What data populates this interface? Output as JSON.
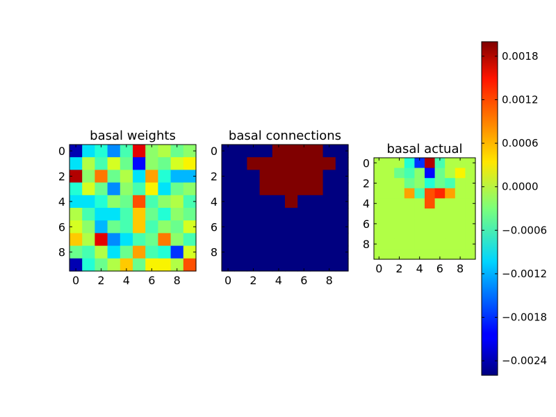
{
  "chart_data": [
    {
      "type": "heatmap",
      "title": "basal weights",
      "x_ticks": [
        "0",
        "2",
        "4",
        "6",
        "8"
      ],
      "y_ticks": [
        "0",
        "2",
        "4",
        "6",
        "8"
      ],
      "grid_size": [
        10,
        10
      ],
      "values": [
        [
          -0.0024,
          -0.001,
          -0.0008,
          -0.0014,
          -0.0006,
          0.0016,
          -0.0002,
          0.0,
          -0.0004,
          -0.0002
        ],
        [
          -0.001,
          0.0,
          -0.0006,
          0.0002,
          -0.0004,
          -0.002,
          -0.0002,
          -0.0004,
          0.0002,
          0.0004
        ],
        [
          0.0018,
          -0.0002,
          0.001,
          -0.0004,
          0.0,
          -0.001,
          0.0008,
          -0.0008,
          -0.0012,
          -0.0012
        ],
        [
          -0.0008,
          0.0002,
          -0.0004,
          -0.0014,
          -0.0002,
          -0.0006,
          0.0004,
          -0.001,
          -0.0004,
          -0.0002
        ],
        [
          -0.001,
          -0.001,
          -0.0008,
          -0.0002,
          -0.0004,
          0.0012,
          -0.0006,
          -0.0002,
          0.0,
          -0.0006
        ],
        [
          0.0,
          -0.0006,
          -0.001,
          -0.001,
          -0.0006,
          0.0006,
          -0.0004,
          -0.0008,
          -0.0002,
          -0.0004
        ],
        [
          0.0002,
          -0.0002,
          -0.0012,
          -0.0004,
          -0.0006,
          0.0006,
          -0.0006,
          -0.0002,
          -0.0004,
          0.0002
        ],
        [
          0.0006,
          0.0,
          0.0016,
          -0.0014,
          -0.001,
          -0.0006,
          -0.0004,
          0.001,
          -0.0002,
          -0.0006
        ],
        [
          -0.0004,
          -0.0006,
          0.0,
          -0.001,
          -0.0004,
          0.0008,
          -0.0006,
          -0.0008,
          -0.0018,
          0.0002
        ],
        [
          -0.0024,
          -0.0008,
          -0.0004,
          0.0,
          0.0006,
          -0.0004,
          0.0004,
          0.0004,
          0.0,
          0.0012
        ]
      ]
    },
    {
      "type": "heatmap",
      "title": "basal connections",
      "x_ticks": [
        "0",
        "2",
        "4",
        "6",
        "8"
      ],
      "y_ticks": [
        "0",
        "2",
        "4",
        "6",
        "8"
      ],
      "grid_size": [
        10,
        10
      ],
      "values": [
        [
          0,
          0,
          0,
          0,
          1,
          1,
          1,
          1,
          0,
          0
        ],
        [
          0,
          0,
          1,
          1,
          1,
          1,
          1,
          1,
          1,
          0
        ],
        [
          0,
          0,
          0,
          1,
          1,
          1,
          1,
          1,
          0,
          0
        ],
        [
          0,
          0,
          0,
          1,
          1,
          1,
          1,
          1,
          0,
          0
        ],
        [
          0,
          0,
          0,
          0,
          0,
          1,
          0,
          0,
          0,
          0
        ],
        [
          0,
          0,
          0,
          0,
          0,
          0,
          0,
          0,
          0,
          0
        ],
        [
          0,
          0,
          0,
          0,
          0,
          0,
          0,
          0,
          0,
          0
        ],
        [
          0,
          0,
          0,
          0,
          0,
          0,
          0,
          0,
          0,
          0
        ],
        [
          0,
          0,
          0,
          0,
          0,
          0,
          0,
          0,
          0,
          0
        ],
        [
          0,
          0,
          0,
          0,
          0,
          0,
          0,
          0,
          0,
          0
        ]
      ]
    },
    {
      "type": "heatmap",
      "title": "basal actual",
      "x_ticks": [
        "0",
        "2",
        "4",
        "6",
        "8"
      ],
      "y_ticks": [
        "0",
        "2",
        "4",
        "6",
        "8"
      ],
      "grid_size": [
        10,
        10
      ],
      "values": [
        [
          0,
          0,
          0,
          -0.0008,
          -0.0018,
          0.0018,
          -0.0006,
          0,
          0,
          0
        ],
        [
          0,
          0,
          -0.0004,
          -0.0006,
          -0.0002,
          -0.002,
          -0.0004,
          0,
          0.0004,
          0
        ],
        [
          0,
          0,
          0,
          -0.0004,
          -0.0002,
          -0.0008,
          -0.0004,
          -0.0006,
          0,
          0
        ],
        [
          0,
          0,
          0,
          0.0008,
          -0.0006,
          0.0012,
          0.0014,
          0.0008,
          0,
          0
        ],
        [
          0,
          0,
          0,
          0,
          0,
          0.0012,
          0,
          0,
          0,
          0
        ],
        [
          0,
          0,
          0,
          0,
          0,
          0,
          0,
          0,
          0,
          0
        ],
        [
          0,
          0,
          0,
          0,
          0,
          0,
          0,
          0,
          0,
          0
        ],
        [
          0,
          0,
          0,
          0,
          0,
          0,
          0,
          0,
          0,
          0
        ],
        [
          0,
          0,
          0,
          0,
          0,
          0,
          0,
          0,
          0,
          0
        ],
        [
          0,
          0,
          0,
          0,
          0,
          0,
          0,
          0,
          0,
          0
        ]
      ]
    }
  ],
  "colorbar": {
    "colormap": "jet",
    "range": [
      -0.0026,
      0.002
    ],
    "ticks": [
      {
        "value": 0.0018,
        "label": "0.0018"
      },
      {
        "value": 0.0012,
        "label": "0.0012"
      },
      {
        "value": 0.0006,
        "label": "0.0006"
      },
      {
        "value": 0.0,
        "label": "0.0000"
      },
      {
        "value": -0.0006,
        "label": "−0.0006"
      },
      {
        "value": -0.0012,
        "label": "−0.0012"
      },
      {
        "value": -0.0018,
        "label": "−0.0018"
      },
      {
        "value": -0.0024,
        "label": "−0.0024"
      }
    ]
  }
}
